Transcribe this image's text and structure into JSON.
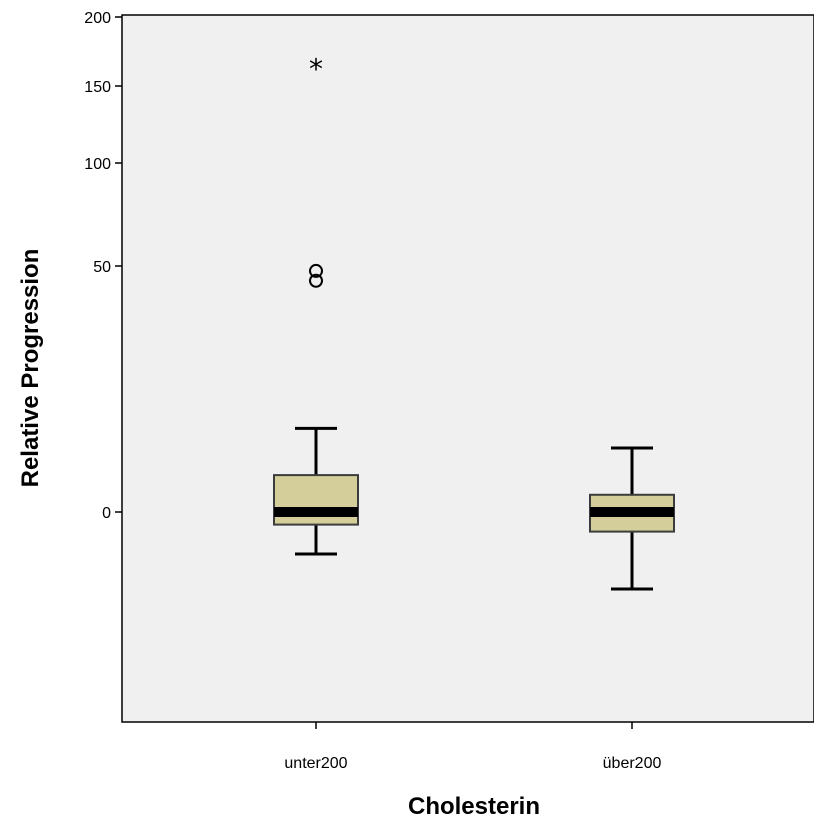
{
  "chart_data": {
    "type": "boxplot",
    "xlabel": "Cholesterin",
    "ylabel": "Relative Progression",
    "categories": [
      "unter200",
      "über200"
    ],
    "y_ticks": [
      0,
      50,
      100,
      150,
      200
    ],
    "y_scale": "nonlinear: values near 0 are spread out, values above 50 compressed",
    "plot_background": "#f0f0f0",
    "box_fill": "#d3ce9a",
    "boxes": [
      {
        "category": "unter200",
        "whisker_low": -6,
        "q1": -1.8,
        "median": 0,
        "q3": 7.5,
        "whisker_high": 17,
        "outliers": [
          {
            "value": 49,
            "marker": "circle"
          },
          {
            "value": 47,
            "marker": "circle"
          },
          {
            "value": 165,
            "marker": "star"
          }
        ]
      },
      {
        "category": "über200",
        "whisker_low": -11,
        "q1": -2.8,
        "median": 0,
        "q3": 3.5,
        "whisker_high": 13,
        "outliers": []
      }
    ]
  }
}
